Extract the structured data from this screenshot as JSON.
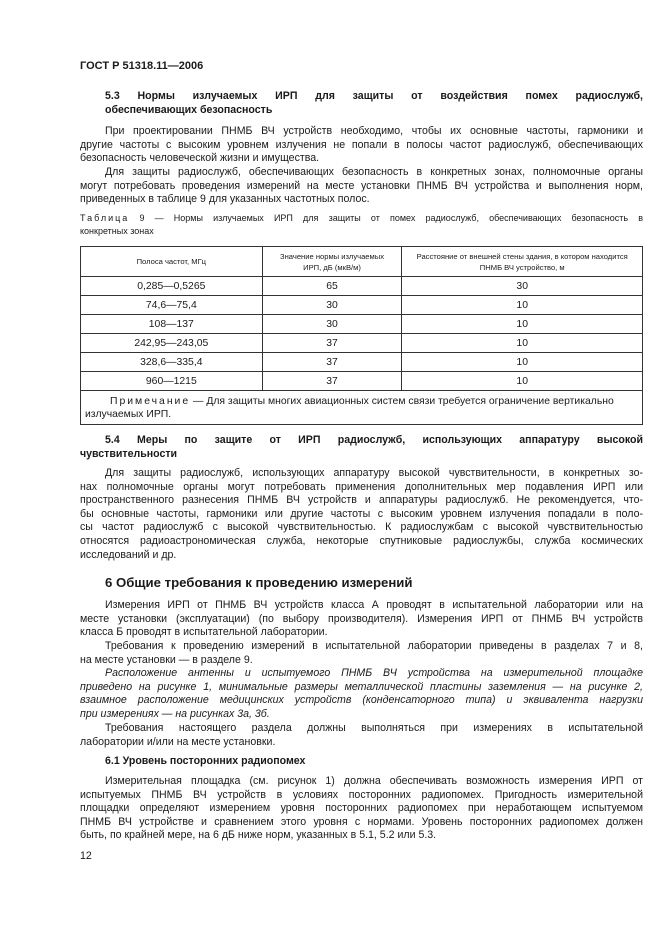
{
  "header": {
    "doc_id": "ГОСТ Р 51318.11—2006"
  },
  "s53": {
    "heading": [
      "5.3  Нормы излучаемых ИРП для защиты от воздействия помех радиослужб,",
      "обеспечивающих безопасность"
    ],
    "p1": [
      "При проектировании ПНМБ ВЧ устройств необходимо, чтобы их основные частоты, гармоники и",
      "другие частоты с высоким уровнем излучения не попали в полосы частот радиослужб, обеспечивающих",
      "безопасность человеческой жизни и имущества."
    ],
    "p2": [
      "Для защиты радиослужб, обеспечивающих безопасность в конкретных зонах, полномочные органы",
      "могут потребовать проведения измерений на месте установки ПНМБ ВЧ устройства и выполнения норм,",
      "приведенных в таблице 9 для указанных частотных полос."
    ]
  },
  "table9": {
    "caption_label": "Таблица",
    "caption": [
      "9 — Нормы излучаемых ИРП для защиты от помех радиослужб, обеспечивающих безопасность в",
      "конкретных зонах"
    ],
    "headers": [
      "Полоса частот, МГц",
      "Значение нормы излучаемых ИРП, дБ (мкВ/м)",
      "Расстояние от внешней стены здания, в котором находится ПНМБ ВЧ устройство, м"
    ],
    "rows": [
      [
        "0,285—0,5265",
        "65",
        "30"
      ],
      [
        "74,6—75,4",
        "30",
        "10"
      ],
      [
        "108—137",
        "30",
        "10"
      ],
      [
        "242,95—243,05",
        "37",
        "10"
      ],
      [
        "328,6—335,4",
        "37",
        "10"
      ],
      [
        "960—1215",
        "37",
        "10"
      ]
    ],
    "note_label": "Примечание",
    "note_text": " — Для защиты многих авиационных систем связи требуется ограничение вертикально излучаемых ИРП."
  },
  "s54": {
    "heading": [
      "5.4 Меры по защите от ИРП радиослужб, использующих аппаратуру высокой",
      "чувствительности"
    ],
    "p1": [
      "Для защиты радиослужб, использующих аппаратуру высокой чувствительности, в конкретных зо-",
      "нах полномочные органы могут потребовать применения дополнительных мер подавления ИРП или",
      "пространственного разнесения ПНМБ ВЧ устройств и аппаратуры радиослужб. Не рекомендуется, что-",
      "бы основные частоты, гармоники или другие частоты с высоким уровнем излучения попадали в поло-",
      "сы частот радиослужб с высокой чувствительностью. К радиослужбам с высокой чувствительностью",
      "относятся радиоастрономическая служба, некоторые спутниковые радиослужбы, служба космических",
      "исследований и др."
    ]
  },
  "s6": {
    "heading": "6  Общие требования к проведению измерений",
    "p1": [
      "Измерения ИРП от ПНМБ ВЧ устройств класса А проводят в испытательной лаборатории или на",
      "месте установки (эксплуатации) (по выбору производителя). Измерения ИРП от ПНМБ ВЧ устройств",
      "класса Б проводят в испытательной лаборатории."
    ],
    "p2": [
      "Требования к проведению измерений в испытательной лаборатории приведены в разделах 7 и 8,",
      "на месте установки — в разделе 9."
    ],
    "p3": [
      "Расположение антенны и испытуемого ПНМБ ВЧ устройства на измерительной площадке",
      "приведено на рисунке 1, минимальные размеры металлической пластины заземления — на рисунке 2,",
      "взаимное расположение медицинских устройств (конденсаторного типа) и эквивалента нагрузки",
      "при измерениях — на рисунках 3а, 3б."
    ],
    "p4": [
      "Требования настоящего раздела должны выполняться при измерениях в испытательной",
      "лаборатории и/или на месте установки."
    ]
  },
  "s61": {
    "heading": "6.1  Уровень посторонних радиопомех",
    "p1": [
      "Измерительная площадка (см. рисунок 1) должна обеспечивать возможность измерения ИРП от",
      "испытуемых ПНМБ ВЧ устройств в условиях посторонних радиопомех. Пригодность измерительной",
      "площадки определяют измерением уровня посторонних радиопомех при неработающем испытуемом",
      "ПНМБ ВЧ устройстве и сравнением этого уровня с нормами. Уровень посторонних радиопомех должен",
      "быть, по крайней мере, на 6 дБ ниже норм, указанных в 5.1, 5.2 или 5.3."
    ]
  },
  "page_number": "12"
}
